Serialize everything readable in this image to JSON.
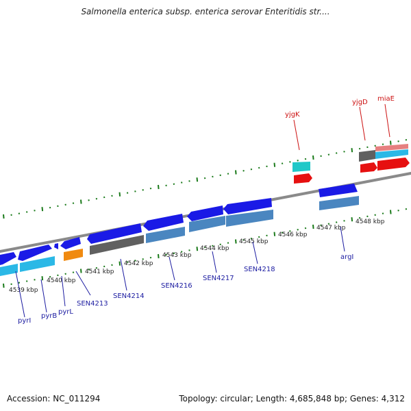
{
  "title": "Salmonella enterica subsp. enterica serovar Enteritidis str....",
  "footer": {
    "accession": "Accession: NC_011294",
    "summary": "Topology: circular; Length: 4,685,848 bp; Genes: 4,312"
  },
  "kbp_labels": [
    "4539 kbp",
    "4540 kbp",
    "4541 kbp",
    "4542 kbp",
    "4543 kbp",
    "4544 kbp",
    "4545 kbp",
    "4546 kbp",
    "4547 kbp",
    "4548 kbp"
  ],
  "bottom_gene_labels": [
    "pyrI",
    "pyrB",
    "pyrL",
    "SEN4213",
    "SEN4214",
    "SEN4216",
    "SEN4217",
    "SEN4218",
    "argI"
  ],
  "top_gene_labels": [
    "yjgK",
    "yjgD",
    "miaE"
  ],
  "colors": {
    "backbone": "#8a8a8a",
    "tick": "#1a7a1a",
    "blue_gene": "#1a1ae6",
    "cyan_gene": "#2bb8e6",
    "steel_gene": "#4a86c0",
    "gray_gene": "#606060",
    "orange_gene": "#f08a10",
    "teal_gene": "#20c8c8",
    "red_gene": "#e61010",
    "pink_gene": "#e68080",
    "bottom_label": "#1a1aa0",
    "top_label": "#cc1010"
  }
}
